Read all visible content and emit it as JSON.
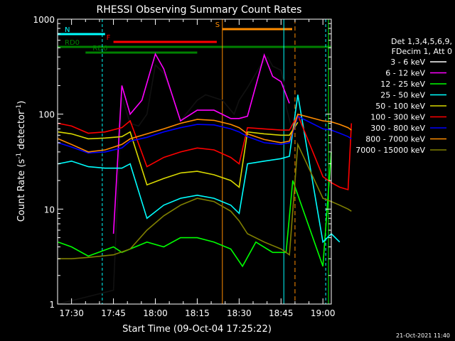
{
  "chart_data": {
    "type": "line",
    "title": "RHESSI Observing Summary Count Rates",
    "xlabel": "Start Time (09-Oct-04 17:25:22)",
    "ylabel": "Count Rate (s-1 detector-1)",
    "ylabel_parts": [
      "Count Rate (s",
      "-1",
      " detector",
      "-1",
      ")"
    ],
    "yscale": "log",
    "ylim": [
      1,
      1000
    ],
    "xlim": [
      "17:25",
      "19:03"
    ],
    "x_ticks": [
      "17:30",
      "17:45",
      "18:00",
      "18:15",
      "18:30",
      "18:45",
      "19:00"
    ],
    "y_ticks": [
      "1",
      "10",
      "100",
      "1000"
    ],
    "legend_header": [
      "Det 1,3,4,5,6,9,",
      "FDecim 1, Att 0"
    ],
    "timestamp": "21-Oct-2021 11:40",
    "grid": false,
    "legend_position": "right",
    "series": [
      {
        "name": "3 - 6 keV",
        "color": "#000000",
        "data": [
          [
            17.42,
            1.0
          ],
          [
            17.75,
            1.4
          ],
          [
            17.8,
            150
          ],
          [
            17.85,
            80
          ],
          [
            17.9,
            75
          ],
          [
            17.95,
            100
          ],
          [
            18.0,
            330
          ],
          [
            18.05,
            270
          ],
          [
            18.1,
            160
          ],
          [
            18.15,
            85
          ],
          [
            18.25,
            140
          ],
          [
            18.3,
            160
          ],
          [
            18.4,
            140
          ],
          [
            18.47,
            100
          ],
          [
            18.5,
            140
          ],
          [
            18.55,
            190
          ],
          [
            18.63,
            330
          ],
          [
            18.67,
            400
          ],
          [
            18.7,
            320
          ],
          [
            18.75,
            290
          ],
          [
            18.77,
            200
          ],
          [
            18.78,
            120
          ],
          [
            18.82,
            65
          ]
        ]
      },
      {
        "name": "6 - 12 keV",
        "color": "#ff00ff",
        "data": [
          [
            17.75,
            5.5
          ],
          [
            17.8,
            200
          ],
          [
            17.85,
            100
          ],
          [
            17.92,
            140
          ],
          [
            18.0,
            430
          ],
          [
            18.05,
            300
          ],
          [
            18.15,
            85
          ],
          [
            18.25,
            110
          ],
          [
            18.35,
            110
          ],
          [
            18.45,
            90
          ],
          [
            18.5,
            90
          ],
          [
            18.55,
            95
          ],
          [
            18.65,
            420
          ],
          [
            18.7,
            250
          ],
          [
            18.75,
            220
          ],
          [
            18.8,
            130
          ]
        ]
      },
      {
        "name": "12 - 25 keV",
        "color": "#00ff00",
        "data": [
          [
            17.42,
            4.5
          ],
          [
            17.5,
            4.0
          ],
          [
            17.6,
            3.2
          ],
          [
            17.75,
            4.0
          ],
          [
            17.8,
            3.5
          ],
          [
            17.95,
            4.5
          ],
          [
            18.05,
            4.0
          ],
          [
            18.15,
            5.0
          ],
          [
            18.25,
            5.0
          ],
          [
            18.35,
            4.5
          ],
          [
            18.45,
            3.8
          ],
          [
            18.52,
            2.5
          ],
          [
            18.6,
            4.5
          ],
          [
            18.7,
            3.5
          ],
          [
            18.78,
            3.5
          ],
          [
            18.82,
            20
          ],
          [
            19.0,
            2.5
          ],
          [
            19.05,
            40
          ]
        ]
      },
      {
        "name": "25 - 50 keV",
        "color": "#00ffff",
        "data": [
          [
            17.42,
            30
          ],
          [
            17.5,
            32
          ],
          [
            17.6,
            28
          ],
          [
            17.7,
            27
          ],
          [
            17.8,
            27
          ],
          [
            17.85,
            30
          ],
          [
            17.95,
            8.0
          ],
          [
            18.05,
            11
          ],
          [
            18.15,
            13
          ],
          [
            18.25,
            14
          ],
          [
            18.35,
            13
          ],
          [
            18.45,
            11
          ],
          [
            18.5,
            9.0
          ],
          [
            18.55,
            30
          ],
          [
            18.65,
            32
          ],
          [
            18.75,
            34
          ],
          [
            18.8,
            36
          ],
          [
            18.85,
            160
          ],
          [
            19.0,
            4.5
          ],
          [
            19.05,
            5.5
          ],
          [
            19.1,
            4.5
          ]
        ]
      },
      {
        "name": "50 - 100 keV",
        "color": "#d8d800",
        "data": [
          [
            17.42,
            65
          ],
          [
            17.5,
            62
          ],
          [
            17.6,
            55
          ],
          [
            17.7,
            56
          ],
          [
            17.8,
            58
          ],
          [
            17.85,
            65
          ],
          [
            17.95,
            18
          ],
          [
            18.05,
            21
          ],
          [
            18.15,
            24
          ],
          [
            18.25,
            25
          ],
          [
            18.35,
            23
          ],
          [
            18.45,
            20
          ],
          [
            18.5,
            17
          ],
          [
            18.55,
            65
          ],
          [
            18.65,
            62
          ],
          [
            18.75,
            60
          ],
          [
            18.8,
            60
          ],
          [
            18.85,
            82
          ]
        ]
      },
      {
        "name": "100 - 300 keV",
        "color": "#ff0000",
        "data": [
          [
            17.42,
            80
          ],
          [
            17.5,
            75
          ],
          [
            17.6,
            63
          ],
          [
            17.7,
            65
          ],
          [
            17.8,
            72
          ],
          [
            17.85,
            85
          ],
          [
            17.95,
            28
          ],
          [
            18.05,
            35
          ],
          [
            18.15,
            40
          ],
          [
            18.25,
            44
          ],
          [
            18.35,
            42
          ],
          [
            18.45,
            35
          ],
          [
            18.5,
            30
          ],
          [
            18.55,
            72
          ],
          [
            18.65,
            70
          ],
          [
            18.75,
            68
          ],
          [
            18.8,
            68
          ],
          [
            18.85,
            98
          ],
          [
            19.0,
            22
          ],
          [
            19.05,
            19
          ],
          [
            19.1,
            17
          ],
          [
            19.15,
            16
          ],
          [
            19.17,
            80
          ]
        ]
      },
      {
        "name": "300 - 800 keV",
        "color": "#0000ff",
        "data": [
          [
            17.42,
            50
          ],
          [
            17.5,
            45
          ],
          [
            17.6,
            39
          ],
          [
            17.7,
            40
          ],
          [
            17.8,
            44
          ],
          [
            17.85,
            52
          ],
          [
            17.95,
            57
          ],
          [
            18.05,
            65
          ],
          [
            18.15,
            72
          ],
          [
            18.25,
            78
          ],
          [
            18.35,
            77
          ],
          [
            18.45,
            70
          ],
          [
            18.5,
            65
          ],
          [
            18.55,
            58
          ],
          [
            18.65,
            50
          ],
          [
            18.75,
            48
          ],
          [
            18.8,
            50
          ],
          [
            18.85,
            95
          ],
          [
            19.0,
            70
          ],
          [
            19.05,
            68
          ],
          [
            19.1,
            63
          ],
          [
            19.15,
            58
          ],
          [
            19.17,
            55
          ]
        ]
      },
      {
        "name": "800 - 7000 keV",
        "color": "#ff8c00",
        "data": [
          [
            17.42,
            55
          ],
          [
            17.5,
            48
          ],
          [
            17.6,
            40
          ],
          [
            17.7,
            42
          ],
          [
            17.8,
            48
          ],
          [
            17.85,
            55
          ],
          [
            17.95,
            62
          ],
          [
            18.05,
            70
          ],
          [
            18.15,
            80
          ],
          [
            18.25,
            88
          ],
          [
            18.35,
            86
          ],
          [
            18.45,
            78
          ],
          [
            18.5,
            72
          ],
          [
            18.55,
            62
          ],
          [
            18.65,
            54
          ],
          [
            18.75,
            50
          ],
          [
            18.8,
            52
          ],
          [
            18.85,
            100
          ],
          [
            19.0,
            85
          ],
          [
            19.05,
            83
          ],
          [
            19.1,
            78
          ],
          [
            19.15,
            72
          ],
          [
            19.17,
            68
          ]
        ]
      },
      {
        "name": "7000 - 15000 keV",
        "color": "#808000",
        "data": [
          [
            17.42,
            3.0
          ],
          [
            17.5,
            3.0
          ],
          [
            17.6,
            3.1
          ],
          [
            17.75,
            3.3
          ],
          [
            17.85,
            3.8
          ],
          [
            17.95,
            6.0
          ],
          [
            18.05,
            8.5
          ],
          [
            18.15,
            11
          ],
          [
            18.25,
            13
          ],
          [
            18.35,
            12
          ],
          [
            18.45,
            9.5
          ],
          [
            18.5,
            7.5
          ],
          [
            18.55,
            5.5
          ],
          [
            18.65,
            4.5
          ],
          [
            18.75,
            3.8
          ],
          [
            18.8,
            3.3
          ],
          [
            18.85,
            48
          ],
          [
            19.0,
            13
          ],
          [
            19.05,
            12
          ],
          [
            19.1,
            11
          ],
          [
            19.15,
            10
          ],
          [
            19.17,
            9.5
          ]
        ]
      }
    ],
    "attenuator_events": [
      {
        "label": "N",
        "color": "#00ffff",
        "start": "17:25",
        "end": "17:42"
      },
      {
        "label": "F",
        "color": "#ff0000",
        "start": "17:45",
        "end": "18:22"
      },
      {
        "label": "S",
        "color": "#ff8c00",
        "start": "18:24",
        "end": "18:49"
      },
      {
        "label": "RD0",
        "color": "#008000",
        "start": "17:25",
        "end": "19:03"
      },
      {
        "label": "RD6",
        "color": "#008000",
        "start": "17:35",
        "end": "18:15"
      }
    ]
  }
}
